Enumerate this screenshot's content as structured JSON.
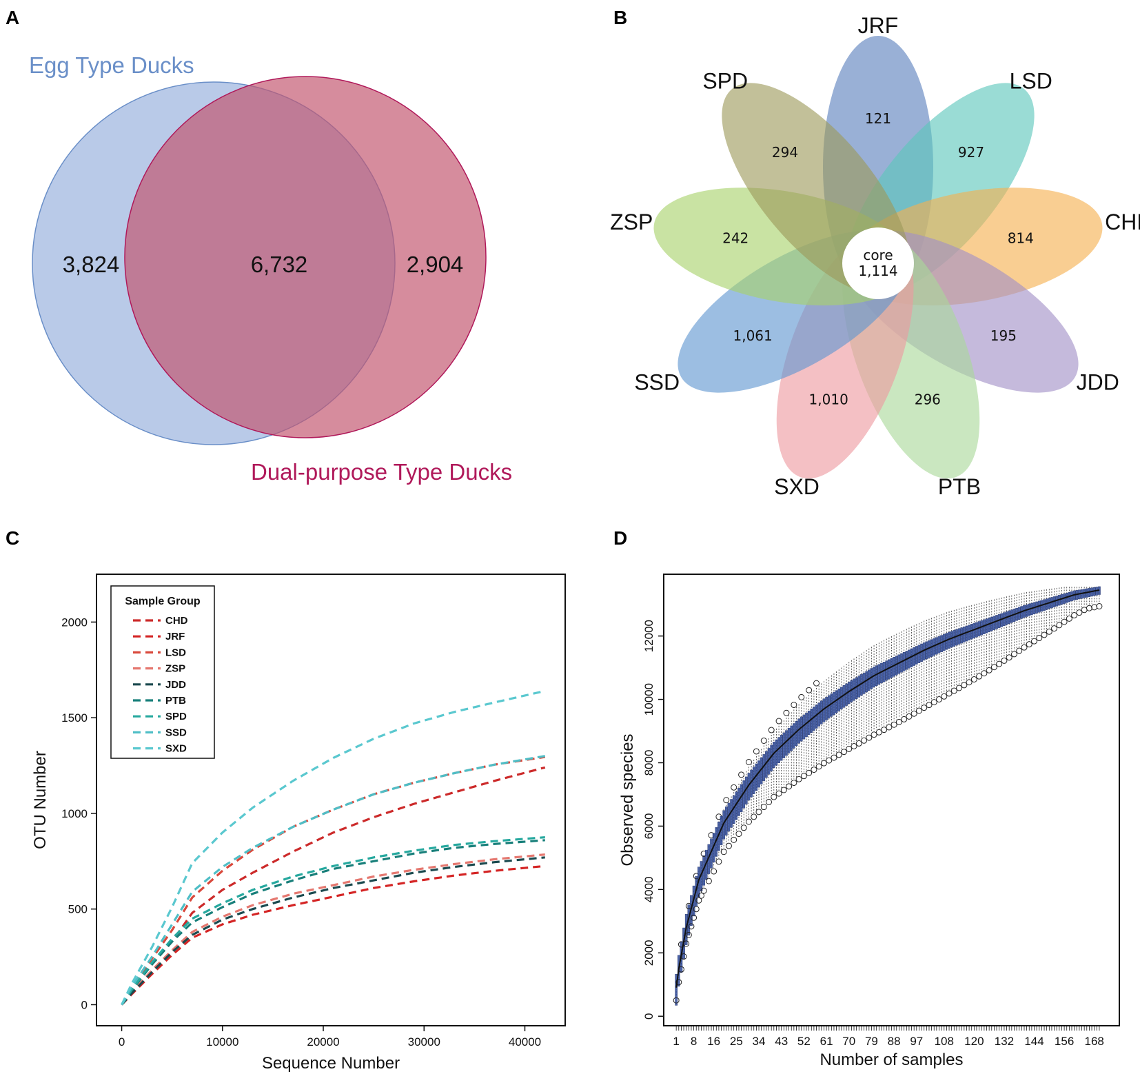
{
  "panels": {
    "A": {
      "label": "A",
      "sets": [
        {
          "name": "Egg Type Ducks",
          "color": "#6a8fc8",
          "fill": "#b3c6e6"
        },
        {
          "name": "Dual-purpose Type Ducks",
          "color": "#b0195a",
          "fill": "#c2556f"
        }
      ],
      "values": {
        "egg_only": "3,824",
        "overlap": "6,732",
        "dual_only": "2,904"
      }
    },
    "B": {
      "label": "B",
      "core_label": "core",
      "core_value": "1,114",
      "petals": [
        {
          "name": "JRF",
          "value": "121",
          "color": "#5b7fbd"
        },
        {
          "name": "LSD",
          "value": "927",
          "color": "#5cc6bb"
        },
        {
          "name": "CHD",
          "value": "814",
          "color": "#f5b04f"
        },
        {
          "name": "JDD",
          "value": "195",
          "color": "#a190c7"
        },
        {
          "name": "PTB",
          "value": "296",
          "color": "#a9d99a"
        },
        {
          "name": "SXD",
          "value": "1,010",
          "color": "#ee9aa0"
        },
        {
          "name": "SSD",
          "value": "1,061",
          "color": "#5f96d0"
        },
        {
          "name": "ZSP",
          "value": "242",
          "color": "#a8d26a"
        },
        {
          "name": "SPD",
          "value": "294",
          "color": "#9c9a5a"
        }
      ]
    },
    "C": {
      "label": "C"
    },
    "D": {
      "label": "D"
    }
  },
  "chart_data": [
    {
      "type": "line",
      "title": "",
      "xlabel": "Sequence Number",
      "ylabel": "OTU Number",
      "xlim": [
        -2500,
        44000
      ],
      "ylim": [
        -110,
        2250
      ],
      "xticks": [
        0,
        10000,
        20000,
        30000,
        40000
      ],
      "yticks": [
        0,
        500,
        1000,
        1500,
        2000
      ],
      "legend": {
        "title": "Sample Group",
        "position": "top-left"
      },
      "x": [
        0,
        1000,
        3000,
        5000,
        7000,
        10000,
        13000,
        17000,
        21000,
        25000,
        29000,
        33000,
        37000,
        42000
      ],
      "series": [
        {
          "name": "CHD",
          "color": "#cc2a2a",
          "values": [
            0,
            80,
            210,
            330,
            480,
            600,
            690,
            800,
            900,
            980,
            1050,
            1110,
            1170,
            1240
          ]
        },
        {
          "name": "JRF",
          "color": "#d42424",
          "values": [
            0,
            55,
            160,
            260,
            350,
            420,
            470,
            520,
            565,
            610,
            645,
            675,
            700,
            725
          ]
        },
        {
          "name": "LSD",
          "color": "#d9483b",
          "values": [
            0,
            90,
            240,
            390,
            560,
            700,
            810,
            930,
            1020,
            1100,
            1160,
            1210,
            1255,
            1295
          ]
        },
        {
          "name": "ZSP",
          "color": "#e57870",
          "values": [
            0,
            65,
            180,
            285,
            380,
            460,
            520,
            580,
            625,
            670,
            705,
            735,
            760,
            785
          ]
        },
        {
          "name": "JDD",
          "color": "#1b4a4f",
          "values": [
            0,
            60,
            170,
            275,
            365,
            445,
            500,
            560,
            610,
            650,
            690,
            720,
            745,
            770
          ]
        },
        {
          "name": "PTB",
          "color": "#187f7a",
          "values": [
            0,
            75,
            210,
            330,
            430,
            510,
            580,
            650,
            710,
            750,
            790,
            820,
            840,
            860
          ]
        },
        {
          "name": "SPD",
          "color": "#26a89e",
          "values": [
            0,
            80,
            220,
            345,
            450,
            530,
            600,
            670,
            725,
            770,
            805,
            835,
            855,
            875
          ]
        },
        {
          "name": "SSD",
          "color": "#4fbec6",
          "values": [
            0,
            95,
            250,
            420,
            590,
            720,
            820,
            930,
            1020,
            1100,
            1160,
            1210,
            1255,
            1300
          ]
        },
        {
          "name": "SXD",
          "color": "#5ac8cf",
          "values": [
            0,
            110,
            300,
            510,
            740,
            900,
            1030,
            1170,
            1290,
            1390,
            1470,
            1530,
            1580,
            1640
          ]
        }
      ]
    },
    {
      "type": "box",
      "title": "",
      "xlabel": "Number of samples",
      "ylabel": "Observed species",
      "n_samples": 170,
      "xlim": [
        -4,
        178
      ],
      "ylim": [
        -300,
        13950
      ],
      "xticks": [
        1,
        8,
        16,
        25,
        34,
        43,
        52,
        61,
        70,
        79,
        88,
        97,
        108,
        120,
        132,
        144,
        156,
        168
      ],
      "yticks": [
        0,
        2000,
        4000,
        6000,
        8000,
        10000,
        12000
      ],
      "median_curve": {
        "x": [
          1,
          2,
          5,
          10,
          20,
          30,
          40,
          50,
          60,
          70,
          80,
          90,
          100,
          110,
          120,
          130,
          140,
          150,
          160,
          170
        ],
        "y": [
          900,
          1500,
          2800,
          4300,
          6100,
          7300,
          8300,
          9050,
          9700,
          10250,
          10750,
          11150,
          11550,
          11900,
          12200,
          12500,
          12800,
          13050,
          13300,
          13450
        ]
      },
      "box_color": "#2e4a9a",
      "whisker_color": "#333333"
    }
  ]
}
